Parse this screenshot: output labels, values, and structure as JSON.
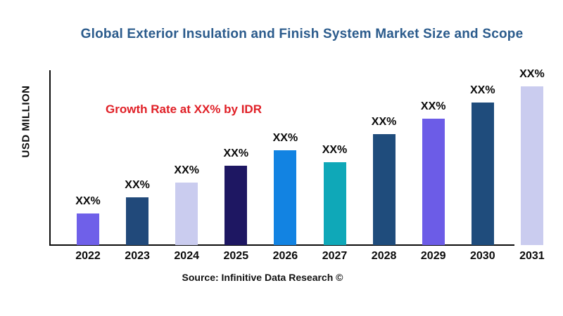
{
  "page": {
    "background_color": "#ffffff"
  },
  "chart_data": {
    "type": "bar",
    "title": "Global Exterior Insulation and Finish System Market Size and Scope",
    "title_color": "#2B5B8C",
    "annotation": "Growth Rate at XX% by IDR",
    "annotation_color": "#E01F26",
    "ylabel": "USD MILLION",
    "xlabel": "",
    "source": "Source: Infinitive Data Research ©",
    "axis_color": "#0B0B0B",
    "grid": false,
    "legend": false,
    "y_tick_labels_visible": false,
    "note": "Numeric axis values are not shown in the chart; every bar is annotated with the placeholder label XX%. Values below are relative bar magnitudes estimated from pixel heights.",
    "categories": [
      "2022",
      "2023",
      "2024",
      "2025",
      "2026",
      "2027",
      "2028",
      "2029",
      "2030",
      "2031"
    ],
    "series": [
      {
        "name": "Market Size (USD Million)",
        "value_labels": [
          "XX%",
          "XX%",
          "XX%",
          "XX%",
          "XX%",
          "XX%",
          "XX%",
          "XX%",
          "XX%",
          "XX%"
        ],
        "relative_values": [
          45,
          68,
          89,
          113,
          135,
          118,
          158,
          180,
          203,
          226
        ],
        "colors": [
          "#6F60E9",
          "#21497A",
          "#CACCEF",
          "#1E1762",
          "#1283E2",
          "#0FA8B8",
          "#1F4C7C",
          "#6C5CE7",
          "#1F4C7C",
          "#CACCEF"
        ]
      }
    ]
  }
}
